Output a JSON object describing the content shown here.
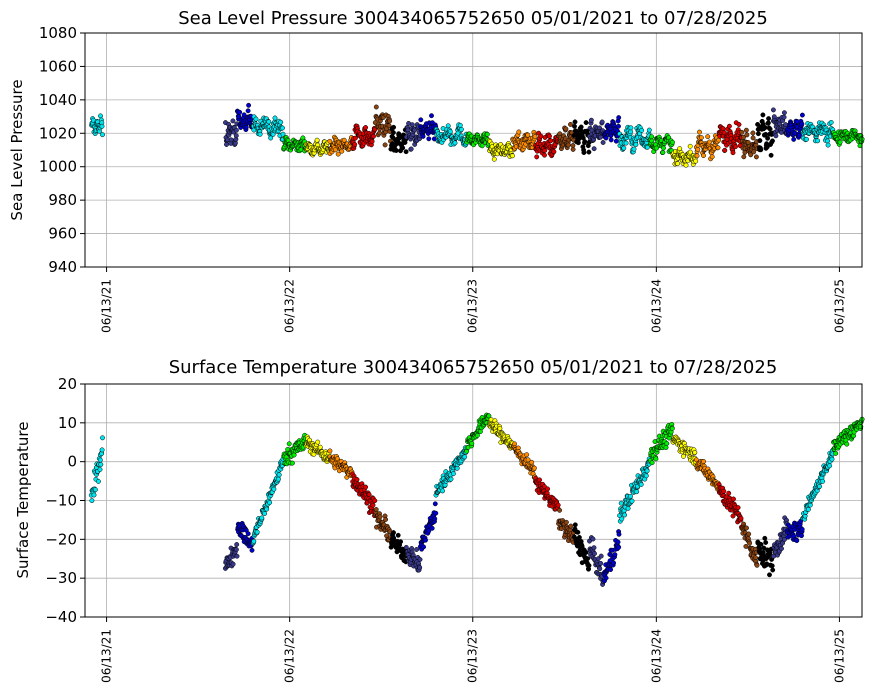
{
  "chart_data": [
    {
      "type": "scatter",
      "title": "Sea Level Pressure 300434065752650  05/01/2021 to 07/28/2025",
      "xlabel": "",
      "ylabel": "Sea Level Pressure",
      "ylim": [
        940,
        1080
      ],
      "yticks": [
        "940",
        "960",
        "980",
        "1000",
        "1020",
        "1040",
        "1060",
        "1080"
      ],
      "xlim": [
        "2021-05-01",
        "2025-07-28"
      ],
      "xticks": [
        "06/13/21",
        "06/13/22",
        "06/13/23",
        "06/13/24",
        "06/13/25"
      ],
      "grid": true,
      "color_by": "month",
      "segments": [
        {
          "start": "2021-05-14",
          "end": "2021-06-05",
          "center": 1024,
          "spread": 7,
          "color": "#00e5ee"
        },
        {
          "start": "2022-02-05",
          "end": "2022-02-28",
          "center": 1020,
          "spread": 9,
          "color": "#3a3a8c"
        },
        {
          "start": "2022-03-01",
          "end": "2022-03-31",
          "center": 1028,
          "spread": 9,
          "color": "#0000cd"
        },
        {
          "start": "2022-04-01",
          "end": "2022-05-31",
          "center": 1024,
          "spread": 8,
          "color": "#00e5ee"
        },
        {
          "start": "2022-06-01",
          "end": "2022-07-15",
          "center": 1013,
          "spread": 6,
          "color": "#00ee00"
        },
        {
          "start": "2022-07-16",
          "end": "2022-08-31",
          "center": 1011,
          "spread": 6,
          "color": "#ffff00"
        },
        {
          "start": "2022-09-01",
          "end": "2022-10-15",
          "center": 1013,
          "spread": 7,
          "color": "#ff8c00"
        },
        {
          "start": "2022-10-16",
          "end": "2022-11-30",
          "center": 1018,
          "spread": 9,
          "color": "#dd0000"
        },
        {
          "start": "2022-12-01",
          "end": "2022-12-31",
          "center": 1025,
          "spread": 13,
          "color": "#8b4513"
        },
        {
          "start": "2023-01-01",
          "end": "2023-01-31",
          "center": 1015,
          "spread": 11,
          "color": "#000000"
        },
        {
          "start": "2023-02-01",
          "end": "2023-02-28",
          "center": 1018,
          "spread": 10,
          "color": "#3a3a8c"
        },
        {
          "start": "2023-03-01",
          "end": "2023-03-31",
          "center": 1022,
          "spread": 9,
          "color": "#0000cd"
        },
        {
          "start": "2023-04-01",
          "end": "2023-05-31",
          "center": 1019,
          "spread": 8,
          "color": "#00e5ee"
        },
        {
          "start": "2023-06-01",
          "end": "2023-07-15",
          "center": 1016,
          "spread": 5,
          "color": "#00ee00"
        },
        {
          "start": "2023-07-16",
          "end": "2023-08-31",
          "center": 1010,
          "spread": 6,
          "color": "#ffff00"
        },
        {
          "start": "2023-09-01",
          "end": "2023-10-15",
          "center": 1015,
          "spread": 7,
          "color": "#ff8c00"
        },
        {
          "start": "2023-10-16",
          "end": "2023-11-30",
          "center": 1013,
          "spread": 9,
          "color": "#dd0000"
        },
        {
          "start": "2023-12-01",
          "end": "2023-12-31",
          "center": 1017,
          "spread": 10,
          "color": "#8b4513"
        },
        {
          "start": "2024-01-01",
          "end": "2024-01-31",
          "center": 1018,
          "spread": 12,
          "color": "#000000"
        },
        {
          "start": "2024-02-01",
          "end": "2024-02-29",
          "center": 1020,
          "spread": 10,
          "color": "#3a3a8c"
        },
        {
          "start": "2024-03-01",
          "end": "2024-03-31",
          "center": 1022,
          "spread": 9,
          "color": "#0000cd"
        },
        {
          "start": "2024-04-01",
          "end": "2024-05-31",
          "center": 1017,
          "spread": 10,
          "color": "#00e5ee"
        },
        {
          "start": "2024-06-01",
          "end": "2024-07-15",
          "center": 1014,
          "spread": 6,
          "color": "#00ee00"
        },
        {
          "start": "2024-07-16",
          "end": "2024-08-31",
          "center": 1006,
          "spread": 6,
          "color": "#ffff00"
        },
        {
          "start": "2024-09-01",
          "end": "2024-10-15",
          "center": 1012,
          "spread": 8,
          "color": "#ff8c00"
        },
        {
          "start": "2024-10-16",
          "end": "2024-11-30",
          "center": 1018,
          "spread": 10,
          "color": "#dd0000"
        },
        {
          "start": "2024-12-01",
          "end": "2024-12-31",
          "center": 1014,
          "spread": 11,
          "color": "#8b4513"
        },
        {
          "start": "2025-01-01",
          "end": "2025-01-31",
          "center": 1020,
          "spread": 15,
          "color": "#000000"
        },
        {
          "start": "2025-02-01",
          "end": "2025-02-28",
          "center": 1025,
          "spread": 10,
          "color": "#3a3a8c"
        },
        {
          "start": "2025-03-01",
          "end": "2025-03-31",
          "center": 1022,
          "spread": 9,
          "color": "#0000cd"
        },
        {
          "start": "2025-04-01",
          "end": "2025-05-31",
          "center": 1021,
          "spread": 8,
          "color": "#00e5ee"
        },
        {
          "start": "2025-06-01",
          "end": "2025-07-28",
          "center": 1018,
          "spread": 6,
          "color": "#00ee00"
        }
      ]
    },
    {
      "type": "scatter",
      "title": "Surface Temperature 300434065752650  05/01/2021 to 07/28/2025",
      "xlabel": "",
      "ylabel": "Surface Temperature",
      "ylim": [
        -40,
        20
      ],
      "yticks": [
        "−40",
        "−30",
        "−20",
        "−10",
        "0",
        "10",
        "20"
      ],
      "xlim": [
        "2021-05-01",
        "2025-07-28"
      ],
      "xticks": [
        "06/13/21",
        "06/13/22",
        "06/13/23",
        "06/13/24",
        "06/13/25"
      ],
      "grid": true,
      "color_by": "month",
      "segments": [
        {
          "start": "2021-05-14",
          "end": "2021-06-05",
          "from": -10,
          "to": 4,
          "spread": 5,
          "color": "#00e5ee"
        },
        {
          "start": "2022-02-05",
          "end": "2022-02-28",
          "from": -27,
          "to": -22,
          "spread": 4,
          "color": "#3a3a8c"
        },
        {
          "start": "2022-03-01",
          "end": "2022-03-31",
          "from": -16,
          "to": -22,
          "spread": 4,
          "color": "#0000cd"
        },
        {
          "start": "2022-04-01",
          "end": "2022-05-31",
          "from": -20,
          "to": 0,
          "spread": 3,
          "color": "#00e5ee"
        },
        {
          "start": "2022-06-01",
          "end": "2022-07-15",
          "from": 1,
          "to": 5,
          "spread": 4,
          "color": "#00ee00"
        },
        {
          "start": "2022-07-16",
          "end": "2022-08-31",
          "from": 5,
          "to": 1,
          "spread": 3,
          "color": "#ffff00"
        },
        {
          "start": "2022-09-01",
          "end": "2022-10-15",
          "from": 1,
          "to": -3,
          "spread": 3,
          "color": "#ff8c00"
        },
        {
          "start": "2022-10-16",
          "end": "2022-11-30",
          "from": -4,
          "to": -12,
          "spread": 4,
          "color": "#dd0000"
        },
        {
          "start": "2022-12-01",
          "end": "2022-12-31",
          "from": -14,
          "to": -19,
          "spread": 4,
          "color": "#8b4513"
        },
        {
          "start": "2023-01-01",
          "end": "2023-01-31",
          "from": -20,
          "to": -24,
          "spread": 4,
          "color": "#000000"
        },
        {
          "start": "2023-02-01",
          "end": "2023-02-28",
          "from": -23,
          "to": -27,
          "spread": 4,
          "color": "#3a3a8c"
        },
        {
          "start": "2023-03-01",
          "end": "2023-03-31",
          "from": -22,
          "to": -13,
          "spread": 4,
          "color": "#0000cd"
        },
        {
          "start": "2023-04-01",
          "end": "2023-05-31",
          "from": -8,
          "to": 3,
          "spread": 3,
          "color": "#00e5ee"
        },
        {
          "start": "2023-06-01",
          "end": "2023-07-15",
          "from": 4,
          "to": 12,
          "spread": 3,
          "color": "#00ee00"
        },
        {
          "start": "2023-07-16",
          "end": "2023-08-31",
          "from": 10,
          "to": 4,
          "spread": 3,
          "color": "#ffff00"
        },
        {
          "start": "2023-09-01",
          "end": "2023-10-15",
          "from": 4,
          "to": -3,
          "spread": 3,
          "color": "#ff8c00"
        },
        {
          "start": "2023-10-16",
          "end": "2023-11-30",
          "from": -5,
          "to": -12,
          "spread": 3,
          "color": "#dd0000"
        },
        {
          "start": "2023-12-01",
          "end": "2023-12-31",
          "from": -15,
          "to": -20,
          "spread": 4,
          "color": "#8b4513"
        },
        {
          "start": "2024-01-01",
          "end": "2024-01-31",
          "from": -18,
          "to": -27,
          "spread": 5,
          "color": "#000000"
        },
        {
          "start": "2024-02-01",
          "end": "2024-02-29",
          "from": -22,
          "to": -30,
          "spread": 5,
          "color": "#3a3a8c"
        },
        {
          "start": "2024-03-01",
          "end": "2024-03-31",
          "from": -30,
          "to": -20,
          "spread": 5,
          "color": "#0000cd"
        },
        {
          "start": "2024-04-01",
          "end": "2024-05-31",
          "from": -14,
          "to": 0,
          "spread": 4,
          "color": "#00e5ee"
        },
        {
          "start": "2024-06-01",
          "end": "2024-07-15",
          "from": 2,
          "to": 8,
          "spread": 4,
          "color": "#00ee00"
        },
        {
          "start": "2024-07-16",
          "end": "2024-08-31",
          "from": 6,
          "to": 1,
          "spread": 3,
          "color": "#ffff00"
        },
        {
          "start": "2024-09-01",
          "end": "2024-10-15",
          "from": 0,
          "to": -6,
          "spread": 3,
          "color": "#ff8c00"
        },
        {
          "start": "2024-10-16",
          "end": "2024-11-30",
          "from": -7,
          "to": -15,
          "spread": 4,
          "color": "#dd0000"
        },
        {
          "start": "2024-12-01",
          "end": "2024-12-31",
          "from": -17,
          "to": -26,
          "spread": 5,
          "color": "#8b4513"
        },
        {
          "start": "2025-01-01",
          "end": "2025-01-31",
          "from": -22,
          "to": -26,
          "spread": 6,
          "color": "#000000"
        },
        {
          "start": "2025-02-01",
          "end": "2025-02-28",
          "from": -24,
          "to": -17,
          "spread": 5,
          "color": "#3a3a8c"
        },
        {
          "start": "2025-03-01",
          "end": "2025-03-31",
          "from": -18,
          "to": -18,
          "spread": 4,
          "color": "#0000cd"
        },
        {
          "start": "2025-04-01",
          "end": "2025-05-31",
          "from": -14,
          "to": 2,
          "spread": 3,
          "color": "#00e5ee"
        },
        {
          "start": "2025-06-01",
          "end": "2025-07-28",
          "from": 4,
          "to": 10,
          "spread": 4,
          "color": "#00ee00"
        }
      ]
    }
  ]
}
